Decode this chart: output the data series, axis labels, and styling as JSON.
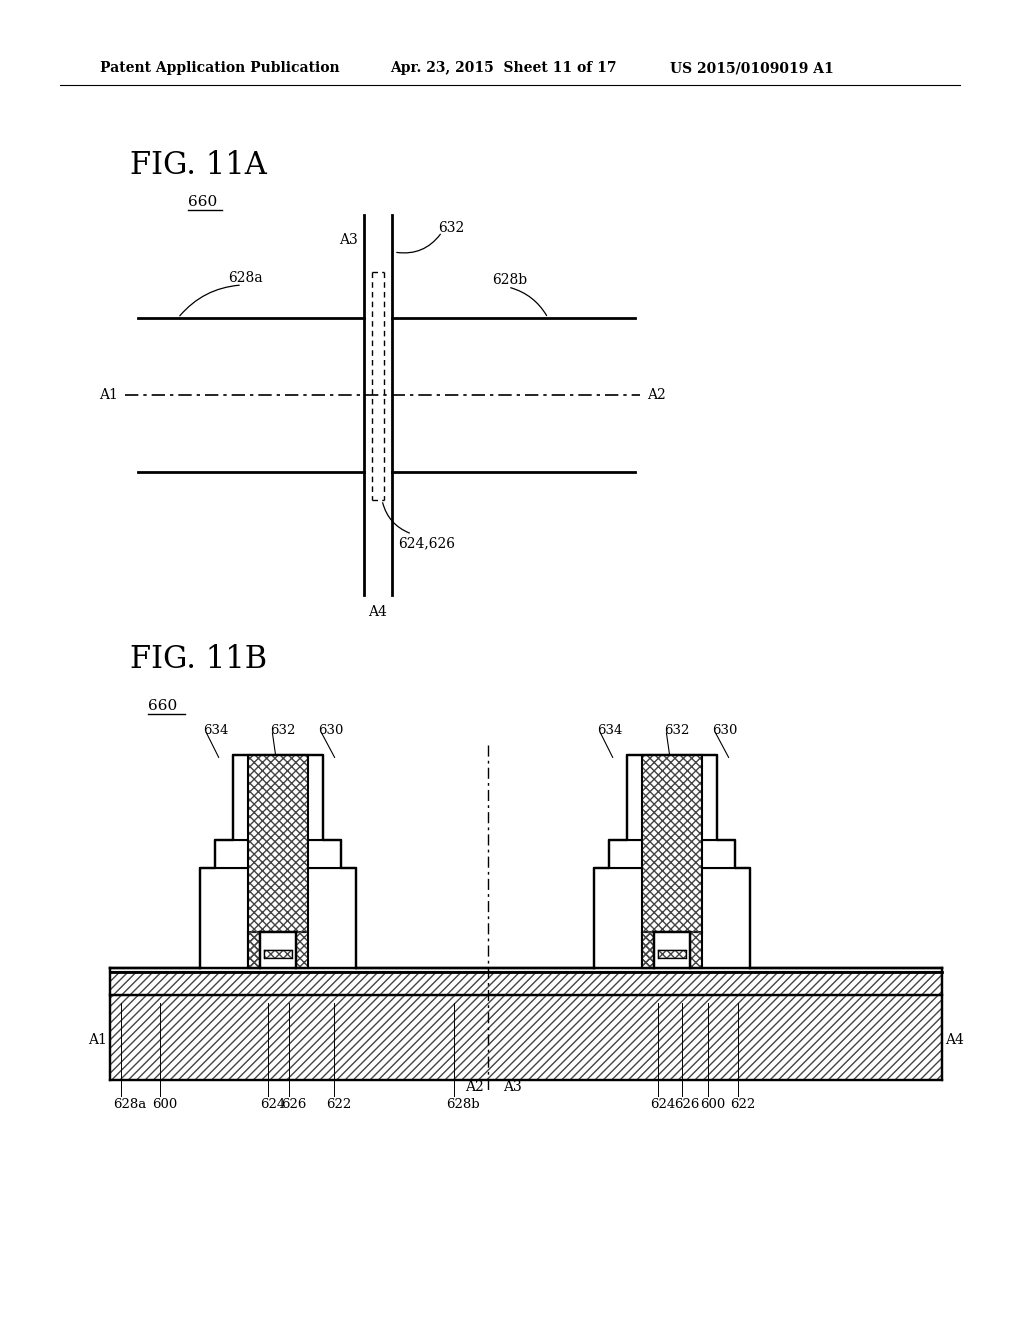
{
  "bg_color": "#ffffff",
  "line_color": "#000000",
  "header_left": "Patent Application Publication",
  "header_mid": "Apr. 23, 2015  Sheet 11 of 17",
  "header_right": "US 2015/0109019 A1"
}
